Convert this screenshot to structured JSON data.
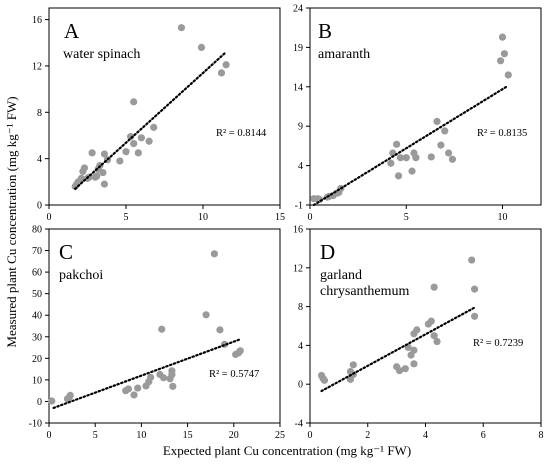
{
  "figure": {
    "xlabel": "Expected plant Cu concentration (mg kg⁻¹ FW)",
    "ylabel": "Measured plant Cu concentration (mg kg⁻¹ FW)"
  },
  "colors": {
    "point": "#9a9a9a",
    "trend": "#000000",
    "frame": "#000000"
  },
  "chart_data": [
    {
      "type": "scatter",
      "panel": "A",
      "title": "water spinach",
      "r2_label": "R² = 0.8144",
      "xlim": [
        0,
        15
      ],
      "ylim": [
        0,
        17
      ],
      "xticks": [
        0,
        5,
        10,
        15
      ],
      "yticks": [
        0,
        4,
        8,
        12,
        16
      ],
      "trendline": [
        [
          1.7,
          1.4
        ],
        [
          11.5,
          13.2
        ]
      ],
      "points": [
        [
          1.7,
          1.6
        ],
        [
          1.8,
          1.8
        ],
        [
          1.9,
          2.0
        ],
        [
          2.1,
          2.3
        ],
        [
          2.2,
          2.9
        ],
        [
          2.3,
          3.2
        ],
        [
          2.5,
          2.3
        ],
        [
          2.6,
          2.4
        ],
        [
          2.8,
          4.5
        ],
        [
          3.0,
          2.4
        ],
        [
          3.1,
          2.5
        ],
        [
          3.2,
          3.1
        ],
        [
          3.3,
          3.4
        ],
        [
          3.5,
          2.8
        ],
        [
          3.6,
          1.8
        ],
        [
          3.6,
          4.4
        ],
        [
          3.8,
          3.9
        ],
        [
          4.6,
          3.8
        ],
        [
          5.0,
          4.6
        ],
        [
          5.3,
          5.9
        ],
        [
          5.5,
          5.3
        ],
        [
          5.5,
          8.9
        ],
        [
          5.8,
          4.5
        ],
        [
          6.0,
          5.8
        ],
        [
          6.5,
          5.5
        ],
        [
          6.8,
          6.7
        ],
        [
          8.6,
          15.3
        ],
        [
          9.9,
          13.6
        ],
        [
          11.2,
          11.4
        ],
        [
          11.5,
          12.1
        ]
      ]
    },
    {
      "type": "scatter",
      "panel": "B",
      "title": "amaranth",
      "r2_label": "R² = 0.8135",
      "xlim": [
        0,
        12
      ],
      "ylim": [
        -1,
        24
      ],
      "xticks": [
        0,
        5,
        10
      ],
      "yticks": [
        -1,
        4,
        9,
        14,
        19,
        24
      ],
      "trendline": [
        [
          0.2,
          -1.0
        ],
        [
          10.2,
          14.0
        ]
      ],
      "points": [
        [
          0.2,
          -0.2
        ],
        [
          0.4,
          -0.2
        ],
        [
          0.5,
          -0.3
        ],
        [
          0.9,
          0.0
        ],
        [
          1.0,
          0.1
        ],
        [
          1.2,
          0.2
        ],
        [
          1.4,
          0.5
        ],
        [
          1.5,
          0.6
        ],
        [
          1.6,
          1.1
        ],
        [
          4.2,
          4.3
        ],
        [
          4.3,
          5.6
        ],
        [
          4.5,
          6.7
        ],
        [
          4.6,
          2.7
        ],
        [
          4.7,
          5.0
        ],
        [
          5.0,
          5.0
        ],
        [
          5.3,
          3.3
        ],
        [
          5.4,
          5.6
        ],
        [
          5.5,
          5.0
        ],
        [
          6.3,
          5.1
        ],
        [
          6.6,
          9.6
        ],
        [
          6.8,
          6.6
        ],
        [
          7.0,
          8.4
        ],
        [
          7.2,
          5.6
        ],
        [
          7.4,
          4.8
        ],
        [
          9.9,
          17.3
        ],
        [
          10.0,
          20.3
        ],
        [
          10.1,
          18.2
        ],
        [
          10.3,
          15.5
        ]
      ]
    },
    {
      "type": "scatter",
      "panel": "C",
      "title": "pakchoi",
      "r2_label": "R² = 0.5747",
      "xlim": [
        0,
        25
      ],
      "ylim": [
        -10,
        80
      ],
      "xticks": [
        0,
        5,
        10,
        15,
        20,
        25
      ],
      "yticks": [
        -10,
        0,
        10,
        20,
        30,
        40,
        50,
        60,
        70,
        80
      ],
      "trendline": [
        [
          0.5,
          -3.0
        ],
        [
          20.8,
          29.0
        ]
      ],
      "points": [
        [
          0.3,
          0.2
        ],
        [
          2.0,
          1.2
        ],
        [
          2.2,
          2.0
        ],
        [
          2.3,
          2.8
        ],
        [
          8.3,
          5.0
        ],
        [
          8.6,
          5.8
        ],
        [
          9.2,
          3.0
        ],
        [
          9.6,
          6.2
        ],
        [
          10.5,
          7.2
        ],
        [
          10.8,
          9.2
        ],
        [
          11.0,
          11.2
        ],
        [
          12.0,
          12.5
        ],
        [
          12.2,
          33.5
        ],
        [
          12.4,
          11.0
        ],
        [
          13.1,
          10.5
        ],
        [
          13.3,
          14.2
        ],
        [
          13.3,
          12.4
        ],
        [
          13.4,
          7.0
        ],
        [
          17.0,
          40.2
        ],
        [
          17.9,
          68.5
        ],
        [
          18.5,
          33.2
        ],
        [
          19.0,
          26.5
        ],
        [
          20.2,
          21.8
        ],
        [
          20.5,
          22.5
        ],
        [
          20.7,
          23.5
        ]
      ]
    },
    {
      "type": "scatter",
      "panel": "D",
      "title": "garland chrysanthemum",
      "title_lines": [
        "garland",
        "chrysanthemum"
      ],
      "r2_label": "R² = 0.7239",
      "xlim": [
        0,
        8
      ],
      "ylim": [
        -4,
        16
      ],
      "xticks": [
        0,
        2,
        4,
        6,
        8
      ],
      "yticks": [
        -4,
        0,
        4,
        8,
        12,
        16
      ],
      "trendline": [
        [
          0.4,
          -0.7
        ],
        [
          5.7,
          7.9
        ]
      ],
      "points": [
        [
          0.4,
          0.9
        ],
        [
          0.45,
          0.6
        ],
        [
          0.5,
          0.4
        ],
        [
          1.4,
          0.5
        ],
        [
          1.4,
          1.3
        ],
        [
          1.5,
          1.0
        ],
        [
          1.5,
          2.0
        ],
        [
          3.0,
          1.8
        ],
        [
          3.1,
          1.4
        ],
        [
          3.3,
          1.6
        ],
        [
          3.4,
          3.8
        ],
        [
          3.5,
          3.0
        ],
        [
          3.6,
          5.2
        ],
        [
          3.6,
          3.5
        ],
        [
          3.6,
          2.1
        ],
        [
          3.7,
          5.6
        ],
        [
          4.1,
          6.2
        ],
        [
          4.2,
          6.5
        ],
        [
          4.3,
          10.0
        ],
        [
          4.3,
          5.0
        ],
        [
          4.4,
          4.4
        ],
        [
          5.6,
          12.8
        ],
        [
          5.7,
          9.8
        ],
        [
          5.7,
          7.0
        ]
      ]
    }
  ]
}
